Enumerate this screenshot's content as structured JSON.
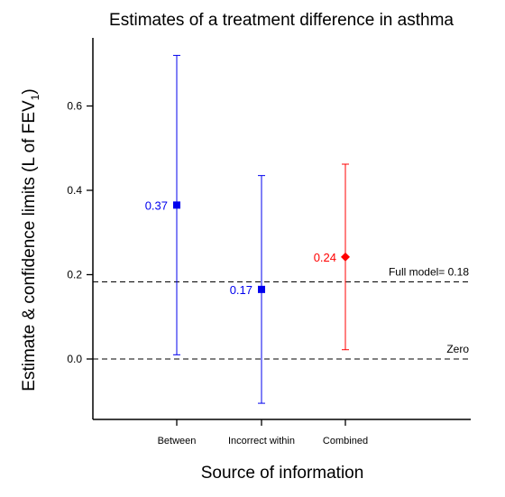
{
  "chart_data": {
    "type": "scatter",
    "title": "Estimates of a treatment difference in asthma",
    "xlabel": "Source of information",
    "ylabel_main": "Estimate & confidence limits (L of FEV",
    "ylabel_sub": "1",
    "ylabel_close": ")",
    "categories": [
      "Between",
      "Incorrect within",
      "Combined"
    ],
    "points": [
      {
        "category": "Between",
        "estimate": 0.365,
        "lower": 0.01,
        "upper": 0.72,
        "label": "0.37",
        "color": "#0000ee",
        "marker": "square"
      },
      {
        "category": "Incorrect within",
        "estimate": 0.165,
        "lower": -0.105,
        "upper": 0.435,
        "label": "0.17",
        "color": "#0000ee",
        "marker": "square"
      },
      {
        "category": "Combined",
        "estimate": 0.242,
        "lower": 0.022,
        "upper": 0.462,
        "label": "0.24",
        "color": "#ff0000",
        "marker": "diamond"
      }
    ],
    "reference_lines": [
      {
        "value": 0.183,
        "label": "Full model= 0.18",
        "style": "dashed"
      },
      {
        "value": 0.0,
        "label": "Zero",
        "style": "dashed"
      }
    ],
    "yticks": [
      0.0,
      0.2,
      0.4,
      0.6
    ],
    "ytick_labels": [
      "0.0",
      "0.2",
      "0.4",
      "0.6"
    ],
    "ylim": [
      -0.14,
      0.76
    ],
    "grid": false,
    "legend": "none"
  }
}
